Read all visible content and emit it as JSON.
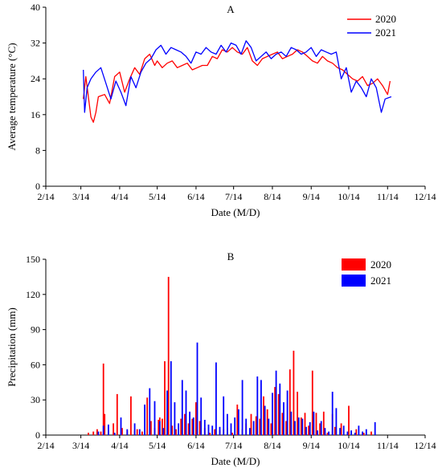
{
  "chart_data": [
    {
      "type": "line",
      "title": "A",
      "xlabel": "Date (M/D)",
      "ylabel": "Average temperature (°C)",
      "x_tick_labels": [
        "2/14",
        "3/14",
        "4/14",
        "5/14",
        "6/14",
        "7/14",
        "8/14",
        "9/14",
        "10/14",
        "11/14",
        "12/14"
      ],
      "x_ticks_day_offsets": [
        0,
        28,
        59,
        89,
        120,
        150,
        181,
        212,
        242,
        273,
        303
      ],
      "ylim": [
        0,
        40
      ],
      "y_ticks": [
        0,
        8,
        16,
        24,
        32,
        40
      ],
      "legend_position": "top-right",
      "series": [
        {
          "name": "2020",
          "color": "#ff0000",
          "x": [
            "3/16",
            "3/18",
            "3/22",
            "3/24",
            "3/26",
            "3/28",
            "4/2",
            "4/6",
            "4/10",
            "4/14",
            "4/18",
            "4/22",
            "4/26",
            "4/30",
            "5/4",
            "5/8",
            "5/12",
            "5/14",
            "5/18",
            "5/22",
            "5/26",
            "5/30",
            "6/3",
            "6/7",
            "6/11",
            "6/15",
            "6/19",
            "6/23",
            "6/27",
            "7/1",
            "7/5",
            "7/9",
            "7/13",
            "7/17",
            "7/21",
            "7/25",
            "7/29",
            "8/2",
            "8/6",
            "8/10",
            "8/14",
            "8/18",
            "8/22",
            "8/26",
            "8/30",
            "9/3",
            "9/7",
            "9/11",
            "9/15",
            "9/19",
            "9/23",
            "9/27",
            "10/1",
            "10/5",
            "10/9",
            "10/13",
            "10/17",
            "10/21",
            "10/25",
            "10/29",
            "11/2",
            "11/6",
            "11/10",
            "11/14",
            "11/16"
          ],
          "y": [
            19.5,
            24.5,
            15.5,
            14.3,
            16.5,
            20,
            20.5,
            18.5,
            24.5,
            25.5,
            21,
            24,
            26.5,
            25,
            28.5,
            29.5,
            27,
            28,
            26.5,
            27.5,
            28,
            26.5,
            27,
            27.5,
            26,
            26.5,
            27,
            27,
            29,
            28.5,
            30.5,
            30,
            31,
            30,
            29.5,
            31,
            28,
            27,
            28.5,
            29,
            29.5,
            30,
            28.5,
            29,
            29.5,
            30.5,
            30,
            29,
            28,
            27.5,
            29,
            28,
            27.5,
            26.5,
            26,
            25,
            24,
            23.5,
            24.5,
            22.5,
            23,
            24,
            22.5,
            20.5,
            23.5
          ]
        },
        {
          "name": "2021",
          "color": "#0000ff",
          "x": [
            "3/16",
            "3/17",
            "3/19",
            "3/22",
            "3/26",
            "3/30",
            "4/3",
            "4/7",
            "4/11",
            "4/15",
            "4/19",
            "4/23",
            "4/27",
            "5/1",
            "5/5",
            "5/9",
            "5/13",
            "5/17",
            "5/21",
            "5/25",
            "5/29",
            "6/2",
            "6/6",
            "6/10",
            "6/14",
            "6/18",
            "6/22",
            "6/26",
            "6/30",
            "7/4",
            "7/8",
            "7/12",
            "7/16",
            "7/20",
            "7/24",
            "7/28",
            "8/1",
            "8/5",
            "8/9",
            "8/13",
            "8/17",
            "8/21",
            "8/25",
            "8/29",
            "9/2",
            "9/6",
            "9/10",
            "9/14",
            "9/18",
            "9/22",
            "9/26",
            "9/30",
            "10/4",
            "10/8",
            "10/12",
            "10/16",
            "10/20",
            "10/24",
            "10/28",
            "11/1",
            "11/5",
            "11/9",
            "11/12",
            "11/17"
          ],
          "y": [
            26,
            16.5,
            22,
            24,
            25.5,
            26.5,
            23,
            19.5,
            23.5,
            21,
            18,
            24.5,
            22,
            25.5,
            27.5,
            28.5,
            30.5,
            31.5,
            29.5,
            31,
            30.5,
            30,
            29,
            27.5,
            30,
            29.5,
            31,
            30,
            29.5,
            31.5,
            30,
            32,
            31.5,
            29.5,
            32.5,
            31,
            28,
            29,
            30,
            28.5,
            29.5,
            30,
            29,
            31,
            30.5,
            29.5,
            30,
            31,
            29,
            30.5,
            30,
            29.5,
            30,
            24,
            26.5,
            21,
            23.5,
            22,
            20,
            24,
            22,
            16.5,
            19.5,
            20
          ]
        }
      ]
    },
    {
      "type": "bar",
      "title": "B",
      "xlabel": "Date (M/D)",
      "ylabel": "Precipitation (mm)",
      "x_tick_labels": [
        "2/14",
        "3/14",
        "4/14",
        "5/14",
        "6/14",
        "7/14",
        "8/14",
        "9/14",
        "10/14",
        "11/14",
        "12/14"
      ],
      "x_ticks_day_offsets": [
        0,
        28,
        59,
        89,
        120,
        150,
        181,
        212,
        242,
        273,
        303
      ],
      "ylim": [
        0,
        150
      ],
      "y_ticks": [
        0,
        30,
        60,
        90,
        120,
        150
      ],
      "legend_position": "top-right",
      "series": [
        {
          "name": "2020",
          "color": "#ff0000",
          "x": [
            "3/20",
            "3/24",
            "3/27",
            "3/30",
            "4/1",
            "4/2",
            "4/5",
            "4/9",
            "4/12",
            "4/16",
            "4/20",
            "4/23",
            "4/26",
            "4/28",
            "5/2",
            "5/6",
            "5/9",
            "5/12",
            "5/15",
            "5/16",
            "5/18",
            "5/20",
            "5/23",
            "5/26",
            "5/29",
            "6/2",
            "6/5",
            "6/8",
            "6/11",
            "6/14",
            "6/17",
            "6/21",
            "6/25",
            "6/29",
            "7/3",
            "7/6",
            "7/9",
            "7/13",
            "7/17",
            "7/21",
            "7/24",
            "7/28",
            "8/1",
            "8/4",
            "8/7",
            "8/10",
            "8/13",
            "8/16",
            "8/19",
            "8/22",
            "8/25",
            "8/28",
            "8/31",
            "9/3",
            "9/6",
            "9/9",
            "9/12",
            "9/15",
            "9/18",
            "9/21",
            "9/24",
            "9/27",
            "10/1",
            "10/3",
            "10/8",
            "10/14",
            "10/20",
            "10/26",
            "11/1"
          ],
          "y": [
            2,
            3,
            5,
            3,
            61,
            18,
            4,
            10,
            35,
            6,
            4,
            33,
            4,
            5,
            3,
            32,
            12,
            6,
            13,
            15,
            14,
            63,
            135,
            8,
            5,
            14,
            18,
            10,
            14,
            28,
            12,
            6,
            2,
            5,
            4,
            5,
            6,
            2,
            26,
            5,
            10,
            18,
            16,
            14,
            33,
            22,
            10,
            41,
            35,
            19,
            12,
            56,
            72,
            37,
            15,
            19,
            8,
            55,
            19,
            10,
            20,
            2,
            18,
            7,
            10,
            25,
            5,
            2,
            3
          ]
        },
        {
          "name": "2021",
          "color": "#0000ff",
          "x": [
            "3/28",
            "4/1",
            "4/5",
            "4/10",
            "4/15",
            "4/20",
            "4/26",
            "4/30",
            "5/4",
            "5/8",
            "5/12",
            "5/16",
            "5/19",
            "5/22",
            "5/25",
            "5/28",
            "5/31",
            "6/3",
            "6/6",
            "6/9",
            "6/12",
            "6/15",
            "6/18",
            "6/21",
            "6/24",
            "6/27",
            "6/30",
            "7/3",
            "7/6",
            "7/9",
            "7/12",
            "7/15",
            "7/18",
            "7/21",
            "7/24",
            "7/27",
            "7/30",
            "8/2",
            "8/5",
            "8/8",
            "8/11",
            "8/14",
            "8/17",
            "8/20",
            "8/23",
            "8/26",
            "8/29",
            "9/1",
            "9/4",
            "9/7",
            "9/10",
            "9/13",
            "9/16",
            "9/19",
            "9/22",
            "9/25",
            "9/28",
            "10/1",
            "10/4",
            "10/7",
            "10/10",
            "10/13",
            "10/16",
            "10/19",
            "10/22",
            "10/25",
            "10/28",
            "11/4"
          ],
          "y": [
            3,
            8,
            9,
            2,
            15,
            5,
            10,
            5,
            26,
            40,
            29,
            12,
            6,
            38,
            63,
            28,
            10,
            47,
            38,
            20,
            15,
            79,
            32,
            13,
            9,
            8,
            62,
            7,
            33,
            18,
            10,
            15,
            22,
            47,
            14,
            6,
            12,
            50,
            47,
            25,
            14,
            36,
            55,
            44,
            28,
            38,
            20,
            12,
            15,
            14,
            7,
            11,
            20,
            4,
            12,
            6,
            3,
            37,
            23,
            6,
            8,
            3,
            4,
            2,
            8,
            3,
            5,
            11
          ]
        }
      ]
    }
  ]
}
